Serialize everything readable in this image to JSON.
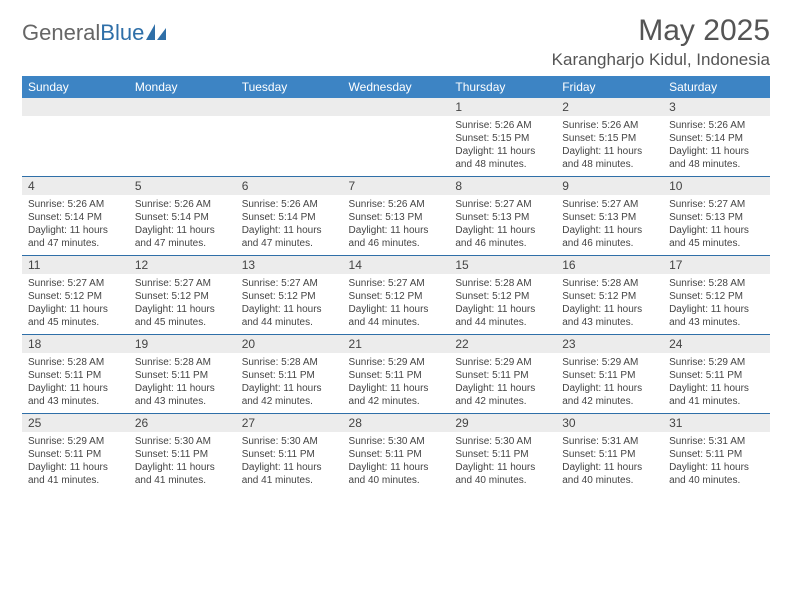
{
  "logo": {
    "text1": "General",
    "text2": "Blue"
  },
  "title": "May 2025",
  "location": "Karangharjo Kidul, Indonesia",
  "colors": {
    "header_bg": "#3d84c4",
    "header_fg": "#ffffff",
    "daynum_bg": "#ececec",
    "rule": "#2f6fa8",
    "text": "#444444",
    "logo_gray": "#666666",
    "logo_blue": "#2f6fa8"
  },
  "typography": {
    "title_fontsize": 30,
    "location_fontsize": 17,
    "dow_fontsize": 12,
    "daynum_fontsize": 12,
    "details_fontsize": 10
  },
  "daysOfWeek": [
    "Sunday",
    "Monday",
    "Tuesday",
    "Wednesday",
    "Thursday",
    "Friday",
    "Saturday"
  ],
  "labels": {
    "sunrise": "Sunrise: ",
    "sunset": "Sunset: ",
    "daylight": "Daylight: "
  },
  "weeks": [
    [
      null,
      null,
      null,
      null,
      {
        "n": "1",
        "sr": "5:26 AM",
        "ss": "5:15 PM",
        "dl": "11 hours and 48 minutes."
      },
      {
        "n": "2",
        "sr": "5:26 AM",
        "ss": "5:15 PM",
        "dl": "11 hours and 48 minutes."
      },
      {
        "n": "3",
        "sr": "5:26 AM",
        "ss": "5:14 PM",
        "dl": "11 hours and 48 minutes."
      }
    ],
    [
      {
        "n": "4",
        "sr": "5:26 AM",
        "ss": "5:14 PM",
        "dl": "11 hours and 47 minutes."
      },
      {
        "n": "5",
        "sr": "5:26 AM",
        "ss": "5:14 PM",
        "dl": "11 hours and 47 minutes."
      },
      {
        "n": "6",
        "sr": "5:26 AM",
        "ss": "5:14 PM",
        "dl": "11 hours and 47 minutes."
      },
      {
        "n": "7",
        "sr": "5:26 AM",
        "ss": "5:13 PM",
        "dl": "11 hours and 46 minutes."
      },
      {
        "n": "8",
        "sr": "5:27 AM",
        "ss": "5:13 PM",
        "dl": "11 hours and 46 minutes."
      },
      {
        "n": "9",
        "sr": "5:27 AM",
        "ss": "5:13 PM",
        "dl": "11 hours and 46 minutes."
      },
      {
        "n": "10",
        "sr": "5:27 AM",
        "ss": "5:13 PM",
        "dl": "11 hours and 45 minutes."
      }
    ],
    [
      {
        "n": "11",
        "sr": "5:27 AM",
        "ss": "5:12 PM",
        "dl": "11 hours and 45 minutes."
      },
      {
        "n": "12",
        "sr": "5:27 AM",
        "ss": "5:12 PM",
        "dl": "11 hours and 45 minutes."
      },
      {
        "n": "13",
        "sr": "5:27 AM",
        "ss": "5:12 PM",
        "dl": "11 hours and 44 minutes."
      },
      {
        "n": "14",
        "sr": "5:27 AM",
        "ss": "5:12 PM",
        "dl": "11 hours and 44 minutes."
      },
      {
        "n": "15",
        "sr": "5:28 AM",
        "ss": "5:12 PM",
        "dl": "11 hours and 44 minutes."
      },
      {
        "n": "16",
        "sr": "5:28 AM",
        "ss": "5:12 PM",
        "dl": "11 hours and 43 minutes."
      },
      {
        "n": "17",
        "sr": "5:28 AM",
        "ss": "5:12 PM",
        "dl": "11 hours and 43 minutes."
      }
    ],
    [
      {
        "n": "18",
        "sr": "5:28 AM",
        "ss": "5:11 PM",
        "dl": "11 hours and 43 minutes."
      },
      {
        "n": "19",
        "sr": "5:28 AM",
        "ss": "5:11 PM",
        "dl": "11 hours and 43 minutes."
      },
      {
        "n": "20",
        "sr": "5:28 AM",
        "ss": "5:11 PM",
        "dl": "11 hours and 42 minutes."
      },
      {
        "n": "21",
        "sr": "5:29 AM",
        "ss": "5:11 PM",
        "dl": "11 hours and 42 minutes."
      },
      {
        "n": "22",
        "sr": "5:29 AM",
        "ss": "5:11 PM",
        "dl": "11 hours and 42 minutes."
      },
      {
        "n": "23",
        "sr": "5:29 AM",
        "ss": "5:11 PM",
        "dl": "11 hours and 42 minutes."
      },
      {
        "n": "24",
        "sr": "5:29 AM",
        "ss": "5:11 PM",
        "dl": "11 hours and 41 minutes."
      }
    ],
    [
      {
        "n": "25",
        "sr": "5:29 AM",
        "ss": "5:11 PM",
        "dl": "11 hours and 41 minutes."
      },
      {
        "n": "26",
        "sr": "5:30 AM",
        "ss": "5:11 PM",
        "dl": "11 hours and 41 minutes."
      },
      {
        "n": "27",
        "sr": "5:30 AM",
        "ss": "5:11 PM",
        "dl": "11 hours and 41 minutes."
      },
      {
        "n": "28",
        "sr": "5:30 AM",
        "ss": "5:11 PM",
        "dl": "11 hours and 40 minutes."
      },
      {
        "n": "29",
        "sr": "5:30 AM",
        "ss": "5:11 PM",
        "dl": "11 hours and 40 minutes."
      },
      {
        "n": "30",
        "sr": "5:31 AM",
        "ss": "5:11 PM",
        "dl": "11 hours and 40 minutes."
      },
      {
        "n": "31",
        "sr": "5:31 AM",
        "ss": "5:11 PM",
        "dl": "11 hours and 40 minutes."
      }
    ]
  ]
}
